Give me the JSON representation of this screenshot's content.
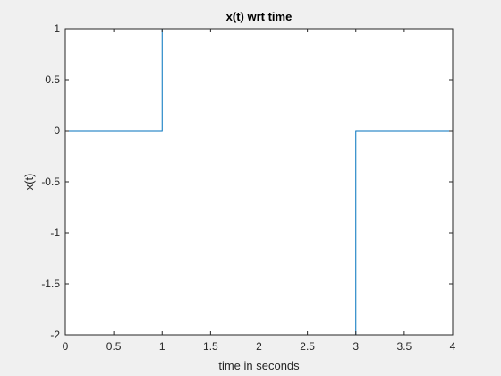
{
  "chart_data": {
    "type": "line",
    "title": "x(t) wrt time",
    "xlabel": "time in seconds",
    "ylabel": "x(t)",
    "xlim": [
      0,
      4
    ],
    "ylim": [
      -2,
      1
    ],
    "xticks": [
      0,
      0.5,
      1,
      1.5,
      2,
      2.5,
      3,
      3.5,
      4
    ],
    "xtick_labels": [
      "0",
      "0.5",
      "1",
      "1.5",
      "2",
      "2.5",
      "3",
      "3.5",
      "4"
    ],
    "yticks": [
      -2,
      -1.5,
      -1,
      -0.5,
      0,
      0.5,
      1
    ],
    "ytick_labels": [
      "-2",
      "-1.5",
      "-1",
      "-0.5",
      "0",
      "0.5",
      "1"
    ],
    "grid": false,
    "series": [
      {
        "color": "#0072bd",
        "x": [
          0,
          1,
          1,
          2,
          2,
          3,
          3,
          4
        ],
        "y": [
          0,
          0,
          1,
          1,
          -2,
          -2,
          0,
          0
        ]
      }
    ]
  }
}
